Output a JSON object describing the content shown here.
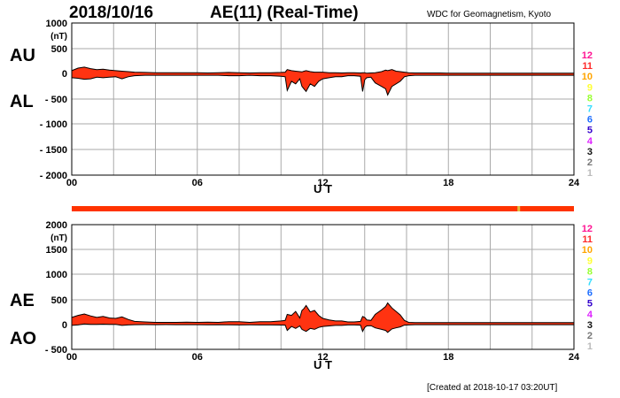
{
  "header": {
    "date": "2018/10/16",
    "title": "AE(11) (Real-Time)",
    "source": "WDC for Geomagnetism, Kyoto"
  },
  "footer": {
    "created": "[Created at 2018-10-17 03:20UT]"
  },
  "legend": {
    "items": [
      {
        "label": "12",
        "color": "#ff1493"
      },
      {
        "label": "11",
        "color": "#ff2a2a"
      },
      {
        "label": "10",
        "color": "#ffa500"
      },
      {
        "label": "9",
        "color": "#ffff33"
      },
      {
        "label": "8",
        "color": "#99ff33"
      },
      {
        "label": "7",
        "color": "#33ddff"
      },
      {
        "label": "6",
        "color": "#1e6eff"
      },
      {
        "label": "5",
        "color": "#3300cc"
      },
      {
        "label": "4",
        "color": "#dd22ff"
      },
      {
        "label": "3",
        "color": "#111111"
      },
      {
        "label": "2",
        "color": "#777777"
      },
      {
        "label": "1",
        "color": "#bbbbbb"
      }
    ]
  },
  "status_bar": {
    "color": "#ff3300",
    "highlight_color": "#e0c040",
    "highlight_hour": 21.3
  },
  "chart_data": [
    {
      "type": "area",
      "upper_series_label": "AU",
      "lower_series_label": "AL",
      "unit": "(nT)",
      "xlabel": "U T",
      "xlim": [
        0,
        24
      ],
      "ylim": [
        -2000,
        1000
      ],
      "x_ticks": [
        "00",
        "06",
        "12",
        "18",
        "24"
      ],
      "y_ticks": [
        "1000",
        "500",
        "0",
        "- 500",
        "- 1000",
        "- 1500",
        "- 2000"
      ],
      "fill_color": "#ff3311",
      "x": [
        0,
        0.3,
        0.6,
        0.9,
        1.2,
        1.5,
        1.8,
        2.1,
        2.4,
        2.7,
        3,
        3.5,
        4,
        4.5,
        5,
        5.5,
        6,
        6.5,
        7,
        7.5,
        8,
        8.5,
        9,
        9.5,
        10,
        10.2,
        10.3,
        10.5,
        10.7,
        10.9,
        11,
        11.1,
        11.2,
        11.4,
        11.6,
        11.8,
        12,
        12.3,
        12.6,
        12.9,
        13.2,
        13.5,
        13.8,
        13.9,
        14,
        14.1,
        14.3,
        14.5,
        14.8,
        15,
        15.1,
        15.3,
        15.5,
        15.7,
        15.9,
        16.1,
        16.4,
        16.8,
        17.2,
        17.6,
        18,
        18.5,
        19,
        19.5,
        20,
        20.5,
        21,
        21.5,
        22,
        22.5,
        23,
        23.5,
        24
      ],
      "upper": [
        60,
        110,
        130,
        100,
        80,
        90,
        70,
        60,
        50,
        40,
        30,
        25,
        20,
        20,
        20,
        20,
        20,
        15,
        20,
        25,
        20,
        15,
        20,
        20,
        25,
        30,
        80,
        60,
        50,
        40,
        35,
        50,
        60,
        40,
        30,
        30,
        30,
        20,
        20,
        15,
        20,
        20,
        15,
        20,
        20,
        10,
        15,
        20,
        40,
        70,
        60,
        80,
        50,
        40,
        30,
        20,
        15,
        15,
        15,
        15,
        10,
        10,
        10,
        10,
        10,
        10,
        10,
        10,
        10,
        10,
        10,
        10,
        10
      ],
      "lower": [
        -80,
        -90,
        -110,
        -100,
        -70,
        -80,
        -70,
        -60,
        -100,
        -60,
        -40,
        -30,
        -30,
        -30,
        -30,
        -30,
        -30,
        -30,
        -30,
        -40,
        -40,
        -30,
        -40,
        -40,
        -50,
        -60,
        -330,
        -150,
        -200,
        -100,
        -250,
        -300,
        -350,
        -200,
        -250,
        -150,
        -100,
        -80,
        -60,
        -60,
        -40,
        -40,
        -50,
        -350,
        -120,
        -80,
        -70,
        -180,
        -250,
        -300,
        -420,
        -250,
        -200,
        -150,
        -60,
        -40,
        -30,
        -30,
        -30,
        -30,
        -30,
        -30,
        -30,
        -30,
        -30,
        -30,
        -30,
        -30,
        -30,
        -30,
        -30,
        -30,
        -30
      ]
    },
    {
      "type": "area",
      "upper_series_label": "AE",
      "lower_series_label": "AO",
      "unit": "(nT)",
      "xlabel": "U T",
      "xlim": [
        0,
        24
      ],
      "ylim": [
        -500,
        2000
      ],
      "x_ticks": [
        "00",
        "06",
        "12",
        "18",
        "24"
      ],
      "y_ticks": [
        "2000",
        "1500",
        "1000",
        "500",
        "0",
        "- 500"
      ],
      "fill_color": "#ff3311",
      "x": [
        0,
        0.3,
        0.6,
        0.9,
        1.2,
        1.5,
        1.8,
        2.1,
        2.4,
        2.7,
        3,
        3.5,
        4,
        4.5,
        5,
        5.5,
        6,
        6.5,
        7,
        7.5,
        8,
        8.5,
        9,
        9.5,
        10,
        10.2,
        10.3,
        10.5,
        10.7,
        10.9,
        11,
        11.1,
        11.2,
        11.4,
        11.6,
        11.8,
        12,
        12.3,
        12.6,
        12.9,
        13.2,
        13.5,
        13.8,
        13.9,
        14,
        14.1,
        14.3,
        14.5,
        14.8,
        15,
        15.1,
        15.3,
        15.5,
        15.7,
        15.9,
        16.1,
        16.4,
        16.8,
        17.2,
        17.6,
        18,
        18.5,
        19,
        19.5,
        20,
        20.5,
        21,
        21.5,
        22,
        22.5,
        23,
        23.5,
        24
      ],
      "upper": [
        140,
        180,
        210,
        170,
        140,
        160,
        130,
        120,
        150,
        100,
        60,
        50,
        40,
        40,
        40,
        45,
        40,
        45,
        40,
        55,
        55,
        40,
        55,
        55,
        70,
        80,
        200,
        180,
        260,
        130,
        280,
        320,
        380,
        250,
        280,
        180,
        120,
        90,
        70,
        70,
        50,
        50,
        60,
        160,
        140,
        90,
        80,
        200,
        290,
        360,
        430,
        330,
        260,
        190,
        80,
        40,
        35,
        35,
        35,
        35,
        35,
        35,
        35,
        35,
        35,
        35,
        35,
        35,
        35,
        35,
        35,
        35,
        35
      ],
      "lower": [
        -20,
        -10,
        10,
        0,
        0,
        5,
        0,
        0,
        -20,
        -10,
        -5,
        -3,
        -5,
        -3,
        -5,
        -5,
        -5,
        -8,
        -5,
        -8,
        -10,
        -8,
        -10,
        -10,
        -12,
        -15,
        -120,
        -40,
        -80,
        -30,
        -100,
        -120,
        -140,
        -80,
        -100,
        -60,
        -40,
        -30,
        -20,
        -20,
        -10,
        -10,
        -15,
        -140,
        -60,
        -30,
        -25,
        -70,
        -100,
        -120,
        -160,
        -90,
        -70,
        -50,
        -15,
        -10,
        -5,
        -5,
        -5,
        -5,
        -5,
        -5,
        -5,
        -5,
        -5,
        -5,
        -5,
        -5,
        -5,
        -5,
        -5,
        -5,
        -5
      ]
    }
  ]
}
